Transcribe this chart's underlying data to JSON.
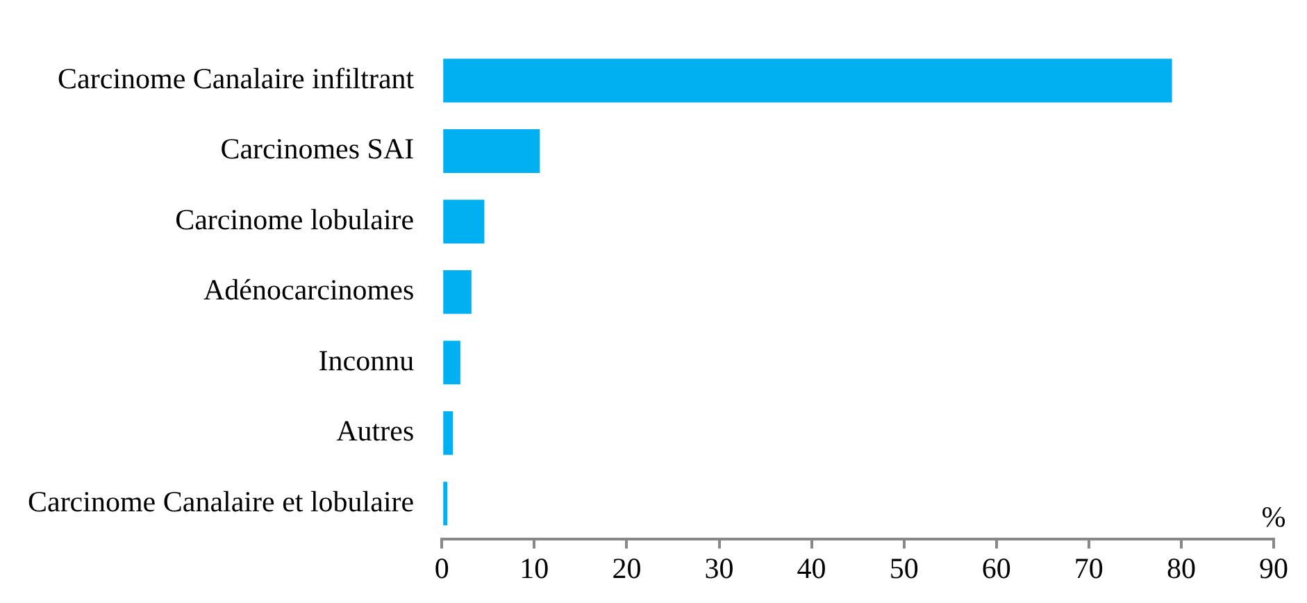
{
  "chart_data": {
    "type": "bar",
    "orientation": "horizontal",
    "xlabel": "%",
    "categories": [
      "Carcinome Canalaire infiltrant",
      "Carcinomes SAI",
      "Carcinome lobulaire",
      "Adénocarcinomes",
      "Inconnu",
      "Autres",
      "Carcinome Canalaire et lobulaire"
    ],
    "values": [
      79.0,
      10.6,
      4.6,
      3.2,
      2.0,
      1.2,
      0.6
    ],
    "color": "#00b0f0",
    "xlim": [
      0,
      90
    ],
    "xticks": [
      0,
      10,
      20,
      30,
      40,
      50,
      60,
      70,
      80,
      90
    ],
    "grid": false,
    "legend": false
  }
}
